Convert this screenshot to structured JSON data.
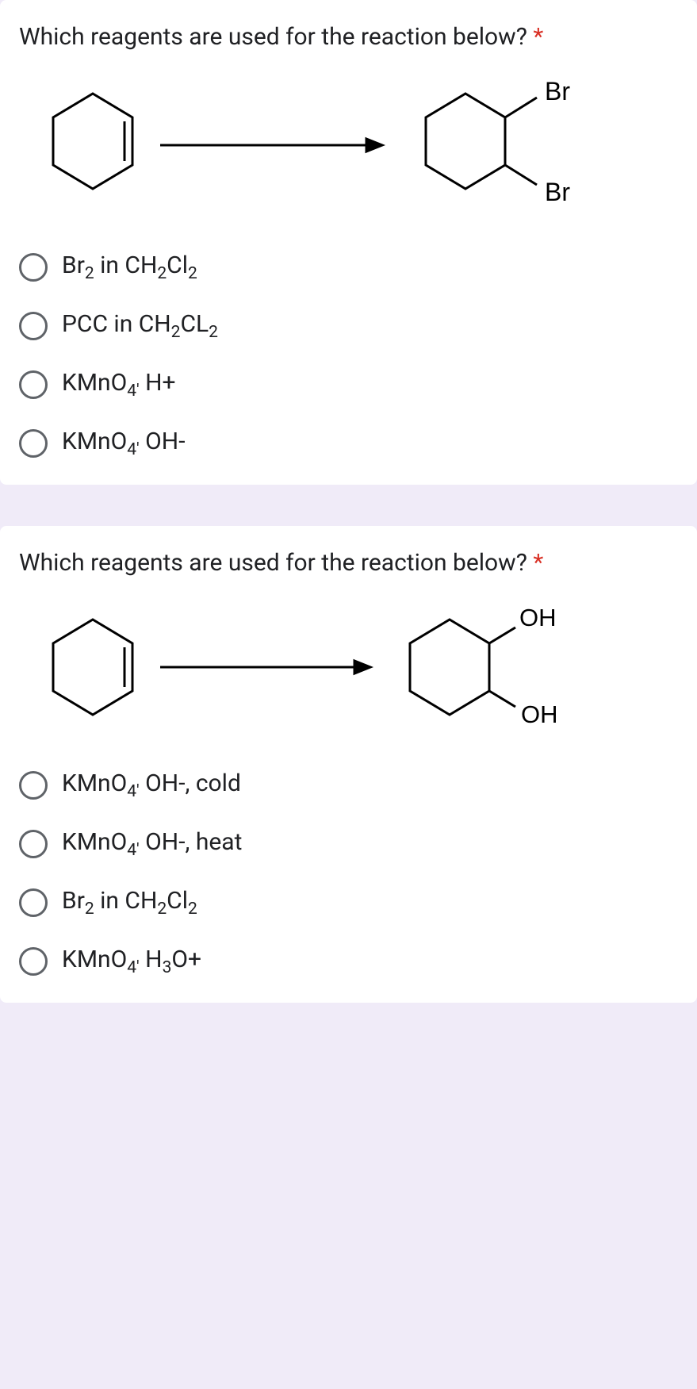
{
  "questions": [
    {
      "title": "Which reagents are used for the reaction below?",
      "required": true,
      "diagram": {
        "reactant": "cyclohexene",
        "product": "1,2-dibromocyclohexane",
        "product_labels": [
          "Br",
          "Br"
        ],
        "stroke_color": "#000000",
        "stroke_width": 3
      },
      "options": [
        {
          "html": "Br<sub>2</sub> in CH<sub>2</sub>Cl<sub>2</sub>"
        },
        {
          "html": "PCC in CH<sub>2</sub>CL<sub>2</sub>"
        },
        {
          "html": "KMnO<sub>4'</sub> H+"
        },
        {
          "html": "KMnO<sub>4'</sub> OH-"
        }
      ]
    },
    {
      "title": "Which reagents are used for the reaction below?",
      "required": true,
      "diagram": {
        "reactant": "cyclohexene",
        "product": "cyclohexane-1,2-diol",
        "product_labels": [
          "OH",
          "OH"
        ],
        "stroke_color": "#000000",
        "stroke_width": 3
      },
      "options": [
        {
          "html": "KMnO<sub>4'</sub> OH-, cold"
        },
        {
          "html": "KMnO<sub>4'</sub> OH-, heat"
        },
        {
          "html": "Br<sub>2</sub> in CH<sub>2</sub>Cl<sub>2</sub>"
        },
        {
          "html": "KMnO<sub>4'</sub> H<sub>3</sub>O+"
        }
      ]
    }
  ],
  "styles": {
    "card_bg": "#ffffff",
    "page_bg": "#f0ebf8",
    "text_color": "#202124",
    "required_color": "#d93025",
    "radio_border": "#5f6368",
    "title_fontsize": 30,
    "option_fontsize": 30
  }
}
